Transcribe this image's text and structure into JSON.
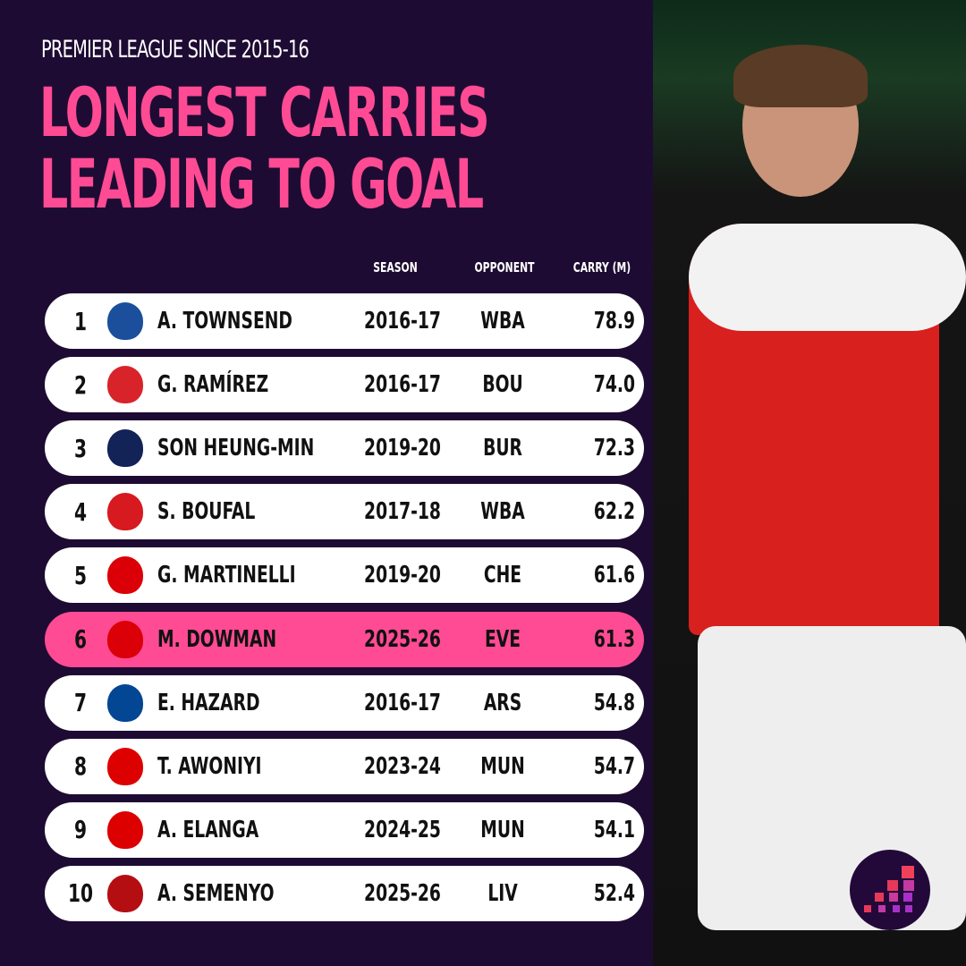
{
  "subtitle": "PREMIER LEAGUE SINCE 2015-16",
  "title_line1": "LONGEST CARRIES",
  "title_line2": "LEADING TO GOAL",
  "headers": {
    "season": "SEASON",
    "opponent": "OPPONENT",
    "carry": "CARRY (M)"
  },
  "accent": "#ff4b94",
  "rows": [
    {
      "rank": "1",
      "club": "crystal-palace",
      "crest": "#1b4f9c",
      "player": "A. TOWNSEND",
      "season": "2016-17",
      "opponent": "WBA",
      "carry": "78.9"
    },
    {
      "rank": "2",
      "club": "middlesbrough",
      "crest": "#d9232a",
      "player": "G. RAMÍREZ",
      "season": "2016-17",
      "opponent": "BOU",
      "carry": "74.0"
    },
    {
      "rank": "3",
      "club": "tottenham",
      "crest": "#132257",
      "player": "SON HEUNG-MIN",
      "season": "2019-20",
      "opponent": "BUR",
      "carry": "72.3"
    },
    {
      "rank": "4",
      "club": "southampton",
      "crest": "#d71920",
      "player": "S. BOUFAL",
      "season": "2017-18",
      "opponent": "WBA",
      "carry": "62.2"
    },
    {
      "rank": "5",
      "club": "arsenal",
      "crest": "#db0007",
      "player": "G. MARTINELLI",
      "season": "2019-20",
      "opponent": "CHE",
      "carry": "61.6"
    },
    {
      "rank": "6",
      "club": "arsenal",
      "crest": "#db0007",
      "player": "M. DOWMAN",
      "season": "2025-26",
      "opponent": "EVE",
      "carry": "61.3",
      "highlight": true
    },
    {
      "rank": "7",
      "club": "chelsea",
      "crest": "#034694",
      "player": "E. HAZARD",
      "season": "2016-17",
      "opponent": "ARS",
      "carry": "54.8"
    },
    {
      "rank": "8",
      "club": "nottingham-forest",
      "crest": "#dd0000",
      "player": "T. AWONIYI",
      "season": "2023-24",
      "opponent": "MUN",
      "carry": "54.7"
    },
    {
      "rank": "9",
      "club": "nottingham-forest",
      "crest": "#dd0000",
      "player": "A. ELANGA",
      "season": "2024-25",
      "opponent": "MUN",
      "carry": "54.1"
    },
    {
      "rank": "10",
      "club": "bournemouth",
      "crest": "#b50e12",
      "player": "A. SEMENYO",
      "season": "2025-26",
      "opponent": "LIV",
      "carry": "52.4"
    }
  ]
}
